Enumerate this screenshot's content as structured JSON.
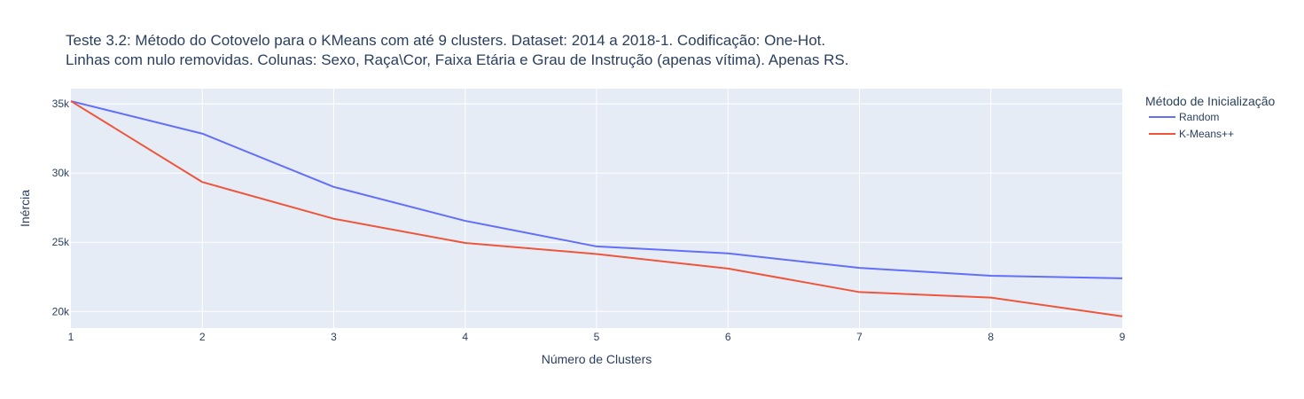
{
  "chart_data": {
    "type": "line",
    "title": [
      "Teste 3.2: Método do Cotovelo para o KMeans com até 9 clusters. Dataset: 2014 a 2018-1. Codificação: One-Hot.",
      "Linhas com nulo removidas. Colunas: Sexo, Raça\\Cor, Faixa Etária e Grau de Instrução (apenas vítima). Apenas RS."
    ],
    "xlabel": "Número de Clusters",
    "ylabel": "Inércia",
    "x": [
      1,
      2,
      3,
      4,
      5,
      6,
      7,
      8,
      9
    ],
    "xlim": [
      1,
      9
    ],
    "ylim": [
      18800,
      36100
    ],
    "xticks": [
      1,
      2,
      3,
      4,
      5,
      6,
      7,
      8,
      9
    ],
    "yticks": [
      20000,
      25000,
      30000,
      35000
    ],
    "ytick_labels": [
      "20k",
      "25k",
      "30k",
      "35k"
    ],
    "legend_title": "Método de Inicialização",
    "legend_position": "top-right outside",
    "grid": true,
    "plot_background": "#e5ecf6",
    "grid_color": "#ffffff",
    "series": [
      {
        "name": "Random",
        "color": "#636efa",
        "values": [
          35200,
          32850,
          29000,
          26550,
          24700,
          24200,
          23150,
          22580,
          22400
        ]
      },
      {
        "name": "K-Means++",
        "color": "#ef553b",
        "values": [
          35200,
          29350,
          26700,
          24950,
          24150,
          23100,
          21400,
          21000,
          19650
        ]
      }
    ]
  }
}
